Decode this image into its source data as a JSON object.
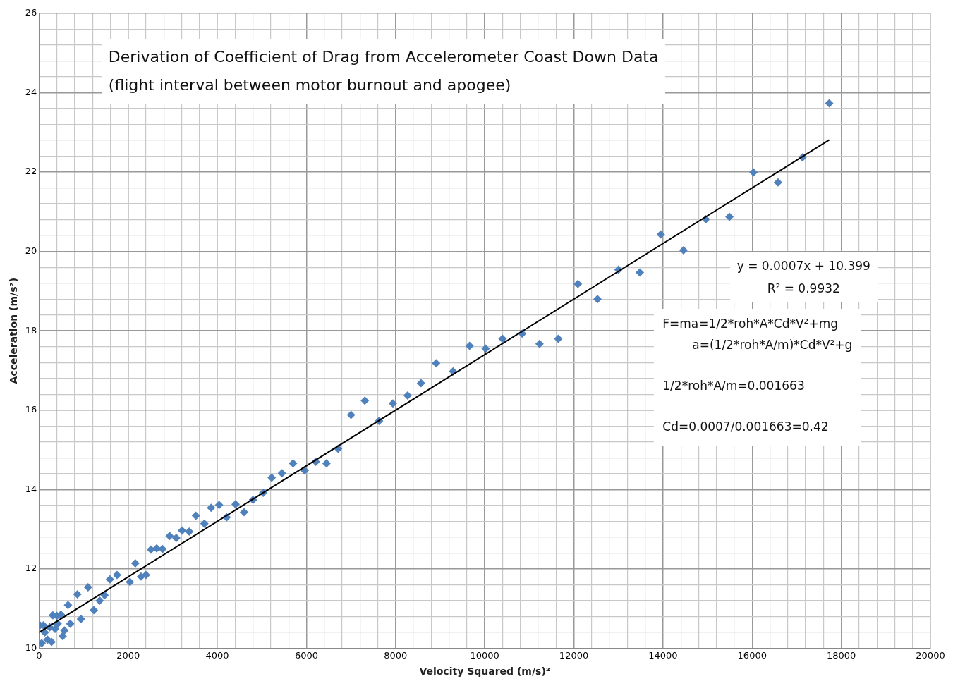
{
  "chart_data": {
    "type": "scatter",
    "title": "Derivation of Coefficient of Drag from  Accelerometer Coast Down Data",
    "subtitle": "(flight interval between motor burnout and apogee)",
    "xlabel": "Velocity Squared (m/s)²",
    "ylabel": "Acceleration (m/s²)",
    "annotations": [
      "y = 0.0007x + 10.399",
      "R² = 0.9932",
      "F=ma=1/2*roh*A*Cd*V²+mg",
      "a=(1/2*roh*A/m)*Cd*V²+g",
      "1/2*roh*A/m=0.001663",
      "Cd=0.0007/0.001663=0.42"
    ],
    "grid": true,
    "legend": false,
    "xlim": [
      0,
      20000
    ],
    "ylim": [
      10,
      26
    ],
    "xticks": [
      0,
      {
        "value": 400,
        "label": null
      },
      {
        "value": 800,
        "label": null
      },
      {
        "value": 1200,
        "label": null
      },
      {
        "value": 1600,
        "label": null
      },
      2000,
      {
        "value": 2400,
        "label": null
      },
      {
        "value": 2800,
        "label": null
      },
      {
        "value": 3200,
        "label": null
      },
      {
        "value": 3600,
        "label": null
      },
      4000,
      {
        "value": 4400,
        "label": null
      },
      {
        "value": 4800,
        "label": null
      },
      {
        "value": 5200,
        "label": null
      },
      {
        "value": 5600,
        "label": null
      },
      6000,
      {
        "value": 6400,
        "label": null
      },
      {
        "value": 6800,
        "label": null
      },
      {
        "value": 7200,
        "label": null
      },
      {
        "value": 7600,
        "label": null
      },
      8000,
      {
        "value": 8400,
        "label": null
      },
      {
        "value": 8800,
        "label": null
      },
      {
        "value": 9200,
        "label": null
      },
      {
        "value": 9600,
        "label": null
      },
      10000,
      {
        "value": 10400,
        "label": null
      },
      {
        "value": 10800,
        "label": null
      },
      {
        "value": 11200,
        "label": null
      },
      {
        "value": 11600,
        "label": null
      },
      12000,
      {
        "value": 12400,
        "label": null
      },
      {
        "value": 12800,
        "label": null
      },
      {
        "value": 13200,
        "label": null
      },
      {
        "value": 13600,
        "label": null
      },
      14000,
      {
        "value": 14400,
        "label": null
      },
      {
        "value": 14800,
        "label": null
      },
      {
        "value": 15200,
        "label": null
      },
      {
        "value": 15600,
        "label": null
      },
      16000,
      {
        "value": 16400,
        "label": null
      },
      {
        "value": 16800,
        "label": null
      },
      {
        "value": 17200,
        "label": null
      },
      {
        "value": 17600,
        "label": null
      },
      18000,
      {
        "value": 18400,
        "label": null
      },
      {
        "value": 18800,
        "label": null
      },
      {
        "value": 19200,
        "label": null
      },
      {
        "value": 19600,
        "label": null
      },
      20000
    ],
    "yticks": [
      10,
      {
        "value": 10.4,
        "label": null
      },
      {
        "value": 10.8,
        "label": null
      },
      {
        "value": 11.2,
        "label": null
      },
      {
        "value": 11.6,
        "label": null
      },
      12,
      {
        "value": 12.4,
        "label": null
      },
      {
        "value": 12.8,
        "label": null
      },
      {
        "value": 13.2,
        "label": null
      },
      {
        "value": 13.6,
        "label": null
      },
      14,
      {
        "value": 14.4,
        "label": null
      },
      {
        "value": 14.8,
        "label": null
      },
      {
        "value": 15.2,
        "label": null
      },
      {
        "value": 15.6,
        "label": null
      },
      16,
      {
        "value": 16.4,
        "label": null
      },
      {
        "value": 16.8,
        "label": null
      },
      {
        "value": 17.2,
        "label": null
      },
      {
        "value": 17.6,
        "label": null
      },
      18,
      {
        "value": 18.4,
        "label": null
      },
      {
        "value": 18.8,
        "label": null
      },
      {
        "value": 19.2,
        "label": null
      },
      {
        "value": 19.6,
        "label": null
      },
      20,
      {
        "value": 20.4,
        "label": null
      },
      {
        "value": 20.8,
        "label": null
      },
      {
        "value": 21.2,
        "label": null
      },
      {
        "value": 21.6,
        "label": null
      },
      22,
      {
        "value": 22.4,
        "label": null
      },
      {
        "value": 22.8,
        "label": null
      },
      {
        "value": 23.2,
        "label": null
      },
      {
        "value": 23.6,
        "label": null
      },
      24,
      {
        "value": 24.4,
        "label": null
      },
      {
        "value": 24.8,
        "label": null
      },
      {
        "value": 25.2,
        "label": null
      },
      {
        "value": 25.6,
        "label": null
      },
      26
    ],
    "series": [
      {
        "type": "scatter",
        "marker": "diamond",
        "color": "#4f81bd",
        "x": [
          20,
          60,
          100,
          130,
          190,
          240,
          280,
          310,
          360,
          400,
          420,
          490,
          530,
          570,
          650,
          700,
          860,
          940,
          1100,
          1230,
          1360,
          1470,
          1590,
          1750,
          2040,
          2160,
          2290,
          2400,
          2510,
          2640,
          2770,
          2930,
          3080,
          3210,
          3370,
          3520,
          3710,
          3860,
          4040,
          4210,
          4410,
          4600,
          4800,
          5030,
          5220,
          5450,
          5700,
          5960,
          6210,
          6450,
          6710,
          7000,
          7310,
          7630,
          7940,
          8270,
          8570,
          8910,
          9290,
          9660,
          10020,
          10400,
          10840,
          11230,
          11650,
          12090,
          12530,
          13000,
          13480,
          13950,
          14460,
          14960,
          15490,
          16030,
          16580,
          17130,
          17730
        ],
        "values": [
          10.58,
          10.13,
          10.58,
          10.4,
          10.22,
          10.53,
          10.16,
          10.83,
          10.49,
          10.82,
          10.62,
          10.85,
          10.31,
          10.45,
          11.09,
          10.62,
          11.36,
          10.74,
          11.54,
          10.96,
          11.2,
          11.34,
          11.74,
          11.85,
          11.67,
          12.14,
          11.81,
          11.85,
          12.49,
          12.52,
          12.5,
          12.83,
          12.78,
          12.97,
          12.94,
          13.34,
          13.14,
          13.54,
          13.61,
          13.3,
          13.63,
          13.43,
          13.74,
          13.92,
          14.3,
          14.41,
          14.66,
          14.48,
          14.7,
          14.66,
          15.03,
          15.88,
          16.24,
          15.73,
          16.17,
          16.37,
          16.68,
          17.18,
          16.98,
          17.62,
          17.55,
          17.8,
          17.93,
          17.67,
          17.8,
          19.18,
          18.8,
          19.54,
          19.47,
          20.43,
          20.03,
          20.81,
          20.87,
          21.99,
          21.74,
          22.37,
          23.73
        ]
      },
      {
        "type": "line",
        "color": "#000000",
        "x": [
          0,
          17730
        ],
        "values": [
          10.4,
          22.81
        ]
      }
    ]
  }
}
